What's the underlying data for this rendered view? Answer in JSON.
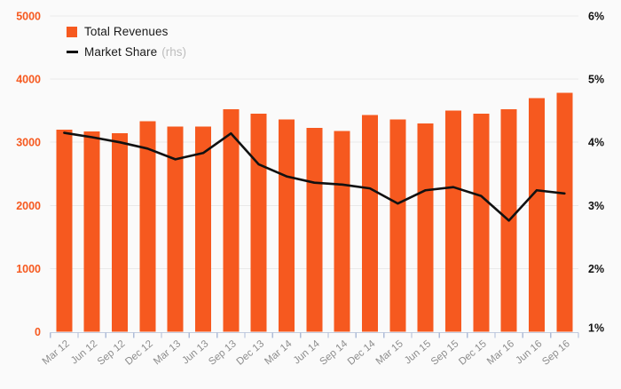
{
  "legend": {
    "series1_label": "Total Revenues",
    "series2_label": "Market Share",
    "series2_suffix": "(rhs)"
  },
  "colors": {
    "background": "#fafafa",
    "bar": "#f6591f",
    "line": "#111111",
    "grid": "#e9e9e9",
    "axis": "#c3cde0",
    "tick": "#aebcd8",
    "x_label": "#8e8e8e",
    "left_label": "#f6591f",
    "right_label": "#111111",
    "legend_text": "#1a1a1a",
    "legend_suffix": "#bdbdbd"
  },
  "chart_data": {
    "type": "bar",
    "categories": [
      "Mar 12",
      "Jun 12",
      "Sep 12",
      "Dec 12",
      "Mar 13",
      "Jun 13",
      "Sep 13",
      "Dec 13",
      "Mar 14",
      "Jun 14",
      "Sep 14",
      "Dec 14",
      "Mar 15",
      "Jun 15",
      "Sep 15",
      "Dec 15",
      "Mar 16",
      "Jun 16",
      "Sep 16"
    ],
    "series": [
      {
        "name": "Total Revenues",
        "type": "bar",
        "axis": "left",
        "values": [
          3200,
          3170,
          3140,
          3330,
          3250,
          3250,
          3520,
          3450,
          3360,
          3230,
          3180,
          3430,
          3360,
          3300,
          3500,
          3450,
          3520,
          3700,
          3780
        ]
      },
      {
        "name": "Market Share (rhs)",
        "type": "line",
        "axis": "right",
        "values": [
          4.15,
          4.08,
          4.0,
          3.9,
          3.73,
          3.83,
          4.14,
          3.65,
          3.46,
          3.36,
          3.33,
          3.27,
          3.03,
          3.24,
          3.29,
          3.15,
          2.76,
          3.24,
          3.19
        ]
      }
    ],
    "left_axis": {
      "min": 0,
      "max": 5000,
      "ticks": [
        0,
        1000,
        2000,
        3000,
        4000,
        5000
      ]
    },
    "right_axis": {
      "min": 1,
      "max": 6,
      "tick_labels": [
        "1%",
        "2%",
        "3%",
        "4%",
        "5%",
        "6%"
      ]
    },
    "grid": true,
    "legend_position": "top-left"
  }
}
